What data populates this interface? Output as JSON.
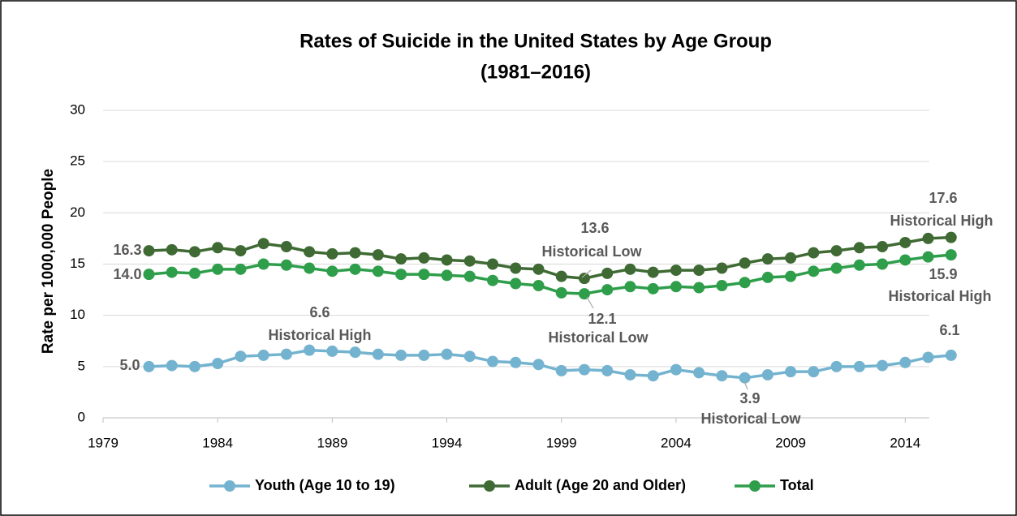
{
  "chart_data": {
    "type": "line",
    "title": "Rates of Suicide in the United States by Age Group",
    "subtitle": "(1981–2016)",
    "y_label": "Rate per 1000,000 People",
    "x": [
      1981,
      1982,
      1983,
      1984,
      1985,
      1986,
      1987,
      1988,
      1989,
      1990,
      1991,
      1992,
      1993,
      1994,
      1995,
      1996,
      1997,
      1998,
      1999,
      2000,
      2001,
      2002,
      2003,
      2004,
      2005,
      2006,
      2007,
      2008,
      2009,
      2010,
      2011,
      2012,
      2013,
      2014,
      2015,
      2016
    ],
    "series": [
      {
        "name": "Youth (Age 10 to 19)",
        "color": "#74b3cf",
        "values": [
          5.0,
          5.1,
          5.0,
          5.3,
          6.0,
          6.1,
          6.2,
          6.6,
          6.5,
          6.4,
          6.2,
          6.1,
          6.1,
          6.2,
          6.0,
          5.5,
          5.4,
          5.2,
          4.6,
          4.7,
          4.6,
          4.2,
          4.1,
          4.7,
          4.4,
          4.1,
          3.9,
          4.2,
          4.5,
          4.5,
          5.0,
          5.0,
          5.1,
          5.4,
          5.9,
          6.1
        ]
      },
      {
        "name": "Adult (Age 20 and Older)",
        "color": "#3f6a34",
        "values": [
          16.3,
          16.4,
          16.2,
          16.6,
          16.3,
          17.0,
          16.7,
          16.2,
          16.0,
          16.1,
          15.9,
          15.5,
          15.6,
          15.4,
          15.3,
          15.0,
          14.6,
          14.5,
          13.8,
          13.6,
          14.1,
          14.5,
          14.2,
          14.4,
          14.4,
          14.6,
          15.1,
          15.5,
          15.6,
          16.1,
          16.3,
          16.6,
          16.7,
          17.1,
          17.5,
          17.6
        ]
      },
      {
        "name": "Total",
        "color": "#2f9e4b",
        "values": [
          14.0,
          14.2,
          14.1,
          14.5,
          14.5,
          15.0,
          14.9,
          14.6,
          14.3,
          14.5,
          14.3,
          14.0,
          14.0,
          13.9,
          13.8,
          13.4,
          13.1,
          12.9,
          12.2,
          12.1,
          12.5,
          12.8,
          12.6,
          12.8,
          12.7,
          12.9,
          13.2,
          13.7,
          13.8,
          14.3,
          14.6,
          14.9,
          15.0,
          15.4,
          15.7,
          15.9
        ]
      }
    ],
    "annotations": [
      [
        "16.3"
      ],
      [
        "14.0"
      ],
      [
        "5.0"
      ],
      [
        "6.6",
        "Historical High"
      ],
      [
        "13.6",
        "Historical Low"
      ],
      [
        "12.1",
        "Historical Low"
      ],
      [
        "3.9",
        "Historical Low"
      ],
      [
        "17.6",
        "Historical High"
      ],
      [
        "15.9",
        "Historical High"
      ],
      [
        "6.1"
      ]
    ],
    "xlim": [
      1979,
      2017
    ],
    "xticks": [
      1979,
      1984,
      1989,
      1994,
      1999,
      2004,
      2009,
      2014
    ],
    "ylim": [
      0,
      30
    ],
    "yticks": [
      0,
      5,
      10,
      15,
      20,
      25,
      30
    ],
    "grid": true,
    "legend": "bottom"
  }
}
